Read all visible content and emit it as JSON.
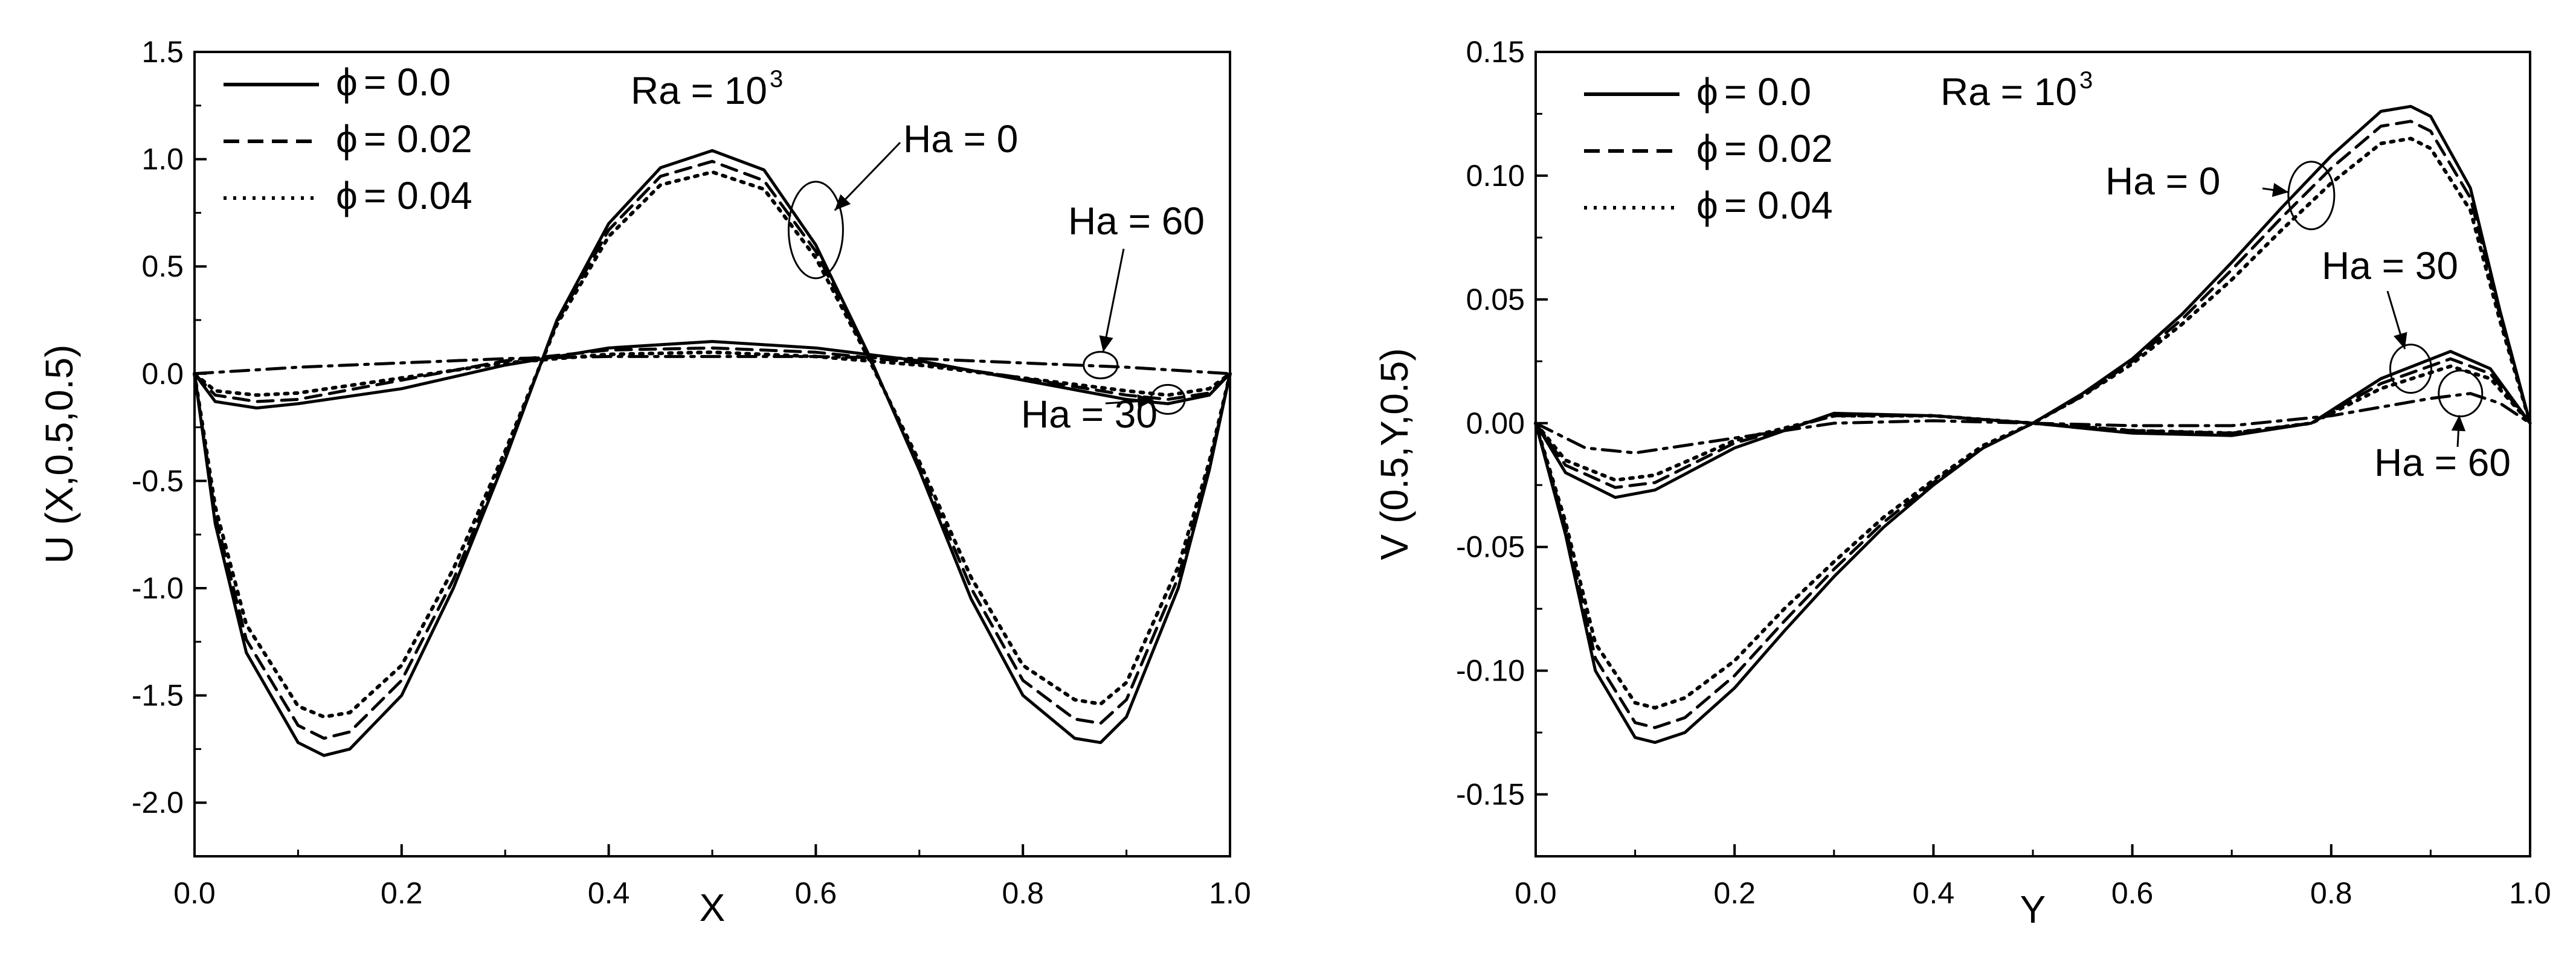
{
  "chart_data": [
    {
      "type": "line",
      "id": "left",
      "xlabel": "X",
      "ylabel": "U (X,0.5,0.5)",
      "xlim": [
        0,
        1
      ],
      "ylim": [
        -2.25,
        1.5
      ],
      "xticks": [
        "0.0",
        "0.2",
        "0.4",
        "0.6",
        "0.8",
        "1.0"
      ],
      "yticks": [
        "1.5",
        "1.0",
        "0.5",
        "0.0",
        "-0.5",
        "-1.0",
        "-1.5",
        "-2.0"
      ],
      "legend": {
        "placement": "top-left",
        "entries": [
          {
            "symbol": "ϕ",
            "text": "= 0.0",
            "style": "solid"
          },
          {
            "symbol": "ϕ",
            "text": "= 0.02",
            "style": "dash"
          },
          {
            "symbol": "ϕ",
            "text": "= 0.04",
            "style": "dot"
          }
        ]
      },
      "ra_label": {
        "base": "Ra = 10",
        "exp": "3"
      },
      "annotations": [
        {
          "text": "Ha = 0",
          "target": [
            0.6,
            0.67
          ]
        },
        {
          "text": "Ha = 60",
          "target": [
            0.875,
            0.04
          ]
        },
        {
          "text": "Ha = 30",
          "target": [
            0.94,
            -0.12
          ]
        }
      ],
      "series": [
        {
          "name": "Ha = 0, ϕ = 0.0",
          "style": "solid",
          "x": [
            0,
            0.02,
            0.05,
            0.1,
            0.125,
            0.15,
            0.2,
            0.25,
            0.3,
            0.35,
            0.4,
            0.45,
            0.5,
            0.55,
            0.6,
            0.65,
            0.7,
            0.75,
            0.8,
            0.85,
            0.875,
            0.9,
            0.95,
            0.98,
            1.0
          ],
          "y": [
            0,
            -0.7,
            -1.3,
            -1.72,
            -1.78,
            -1.75,
            -1.5,
            -1.0,
            -0.4,
            0.25,
            0.7,
            0.96,
            1.04,
            0.95,
            0.6,
            0.1,
            -0.45,
            -1.05,
            -1.5,
            -1.7,
            -1.72,
            -1.6,
            -1.0,
            -0.45,
            0
          ]
        },
        {
          "name": "Ha = 0, ϕ = 0.02",
          "style": "dash",
          "x": [
            0,
            0.02,
            0.05,
            0.1,
            0.125,
            0.15,
            0.2,
            0.25,
            0.3,
            0.35,
            0.4,
            0.45,
            0.5,
            0.55,
            0.6,
            0.65,
            0.7,
            0.75,
            0.8,
            0.85,
            0.875,
            0.9,
            0.95,
            0.98,
            1.0
          ],
          "y": [
            0,
            -0.66,
            -1.24,
            -1.64,
            -1.7,
            -1.67,
            -1.43,
            -0.96,
            -0.38,
            0.24,
            0.67,
            0.92,
            0.99,
            0.9,
            0.57,
            0.09,
            -0.43,
            -1.0,
            -1.43,
            -1.61,
            -1.63,
            -1.52,
            -0.95,
            -0.43,
            0
          ]
        },
        {
          "name": "Ha = 0, ϕ = 0.04",
          "style": "dot",
          "x": [
            0,
            0.02,
            0.05,
            0.1,
            0.125,
            0.15,
            0.2,
            0.25,
            0.3,
            0.35,
            0.4,
            0.45,
            0.5,
            0.55,
            0.6,
            0.65,
            0.7,
            0.75,
            0.8,
            0.85,
            0.875,
            0.9,
            0.95,
            0.98,
            1.0
          ],
          "y": [
            0,
            -0.62,
            -1.17,
            -1.55,
            -1.6,
            -1.58,
            -1.36,
            -0.91,
            -0.36,
            0.23,
            0.64,
            0.88,
            0.94,
            0.86,
            0.54,
            0.08,
            -0.41,
            -0.95,
            -1.36,
            -1.52,
            -1.54,
            -1.44,
            -0.9,
            -0.41,
            0
          ]
        },
        {
          "name": "Ha = 30, ϕ = 0.0",
          "style": "solid",
          "x": [
            0,
            0.02,
            0.06,
            0.1,
            0.2,
            0.3,
            0.4,
            0.5,
            0.6,
            0.7,
            0.8,
            0.9,
            0.94,
            0.98,
            1.0
          ],
          "y": [
            0,
            -0.13,
            -0.16,
            -0.14,
            -0.07,
            0.04,
            0.12,
            0.15,
            0.12,
            0.06,
            -0.03,
            -0.12,
            -0.14,
            -0.1,
            0
          ]
        },
        {
          "name": "Ha = 30, ϕ = 0.02",
          "style": "dash",
          "x": [
            0,
            0.02,
            0.06,
            0.1,
            0.2,
            0.3,
            0.4,
            0.5,
            0.6,
            0.7,
            0.8,
            0.9,
            0.94,
            0.98,
            1.0
          ],
          "y": [
            0,
            -0.1,
            -0.13,
            -0.12,
            -0.03,
            0.06,
            0.11,
            0.12,
            0.1,
            0.05,
            -0.02,
            -0.1,
            -0.12,
            -0.09,
            0
          ]
        },
        {
          "name": "Ha = 30, ϕ = 0.04",
          "style": "dot",
          "x": [
            0,
            0.02,
            0.06,
            0.1,
            0.2,
            0.3,
            0.4,
            0.5,
            0.6,
            0.7,
            0.8,
            0.9,
            0.94,
            0.98,
            1.0
          ],
          "y": [
            0,
            -0.08,
            -0.1,
            -0.09,
            -0.02,
            0.05,
            0.09,
            0.1,
            0.08,
            0.04,
            -0.02,
            -0.08,
            -0.1,
            -0.07,
            0
          ]
        },
        {
          "name": "Ha = 60",
          "style": "dashdot",
          "x": [
            0,
            0.1,
            0.2,
            0.3,
            0.4,
            0.5,
            0.6,
            0.7,
            0.8,
            0.9,
            1.0
          ],
          "y": [
            0,
            0.03,
            0.05,
            0.07,
            0.08,
            0.08,
            0.08,
            0.07,
            0.05,
            0.03,
            0
          ]
        }
      ]
    },
    {
      "type": "line",
      "id": "right",
      "xlabel": "Y",
      "ylabel": "V (0.5,Y,0.5)",
      "xlim": [
        0,
        1
      ],
      "ylim": [
        -0.175,
        0.15
      ],
      "xticks": [
        "0.0",
        "0.2",
        "0.4",
        "0.6",
        "0.8",
        "1.0"
      ],
      "yticks": [
        "0.15",
        "0.10",
        "0.05",
        "0.00",
        "-0.05",
        "-0.10",
        "-0.15"
      ],
      "legend": {
        "placement": "top-left",
        "entries": [
          {
            "symbol": "ϕ",
            "text": "= 0.0",
            "style": "solid"
          },
          {
            "symbol": "ϕ",
            "text": "= 0.02",
            "style": "dash"
          },
          {
            "symbol": "ϕ",
            "text": "= 0.04",
            "style": "dot"
          }
        ]
      },
      "ra_label": {
        "base": "Ra = 10",
        "exp": "3"
      },
      "annotations": [
        {
          "text": "Ha = 0",
          "target": [
            0.78,
            0.092
          ]
        },
        {
          "text": "Ha = 30",
          "target": [
            0.88,
            0.022
          ]
        },
        {
          "text": "Ha = 60",
          "target": [
            0.93,
            0.012
          ]
        }
      ],
      "series": [
        {
          "name": "Ha = 0, ϕ = 0.0",
          "style": "solid",
          "x": [
            0,
            0.03,
            0.06,
            0.1,
            0.12,
            0.15,
            0.2,
            0.25,
            0.3,
            0.35,
            0.4,
            0.45,
            0.5,
            0.55,
            0.6,
            0.65,
            0.7,
            0.75,
            0.8,
            0.85,
            0.88,
            0.9,
            0.94,
            0.97,
            1.0
          ],
          "y": [
            0,
            -0.045,
            -0.1,
            -0.127,
            -0.129,
            -0.125,
            -0.107,
            -0.084,
            -0.062,
            -0.042,
            -0.025,
            -0.01,
            0,
            0.012,
            0.026,
            0.044,
            0.065,
            0.087,
            0.108,
            0.126,
            0.128,
            0.124,
            0.095,
            0.045,
            0
          ]
        },
        {
          "name": "Ha = 0, ϕ = 0.02",
          "style": "dash",
          "x": [
            0,
            0.03,
            0.06,
            0.1,
            0.12,
            0.15,
            0.2,
            0.25,
            0.3,
            0.35,
            0.4,
            0.45,
            0.5,
            0.55,
            0.6,
            0.65,
            0.7,
            0.75,
            0.8,
            0.85,
            0.88,
            0.9,
            0.94,
            0.97,
            1.0
          ],
          "y": [
            0,
            -0.042,
            -0.095,
            -0.121,
            -0.123,
            -0.119,
            -0.102,
            -0.08,
            -0.059,
            -0.04,
            -0.024,
            -0.01,
            0,
            0.011,
            0.025,
            0.042,
            0.062,
            0.083,
            0.103,
            0.12,
            0.122,
            0.118,
            0.091,
            0.043,
            0
          ]
        },
        {
          "name": "Ha = 0, ϕ = 0.04",
          "style": "dot",
          "x": [
            0,
            0.03,
            0.06,
            0.1,
            0.12,
            0.15,
            0.2,
            0.25,
            0.3,
            0.35,
            0.4,
            0.45,
            0.5,
            0.55,
            0.6,
            0.65,
            0.7,
            0.75,
            0.8,
            0.85,
            0.88,
            0.9,
            0.94,
            0.97,
            1.0
          ],
          "y": [
            0,
            -0.04,
            -0.089,
            -0.113,
            -0.115,
            -0.111,
            -0.096,
            -0.075,
            -0.056,
            -0.038,
            -0.023,
            -0.009,
            0,
            0.011,
            0.024,
            0.04,
            0.058,
            0.078,
            0.097,
            0.113,
            0.115,
            0.111,
            0.086,
            0.041,
            0
          ]
        },
        {
          "name": "Ha = 30, ϕ = 0.0",
          "style": "solid",
          "x": [
            0,
            0.03,
            0.08,
            0.12,
            0.2,
            0.3,
            0.4,
            0.5,
            0.6,
            0.7,
            0.78,
            0.85,
            0.92,
            0.96,
            1.0
          ],
          "y": [
            0,
            -0.02,
            -0.03,
            -0.027,
            -0.01,
            0.004,
            0.003,
            0,
            -0.004,
            -0.005,
            0,
            0.018,
            0.029,
            0.022,
            0
          ]
        },
        {
          "name": "Ha = 30, ϕ = 0.02",
          "style": "dash",
          "x": [
            0,
            0.03,
            0.08,
            0.12,
            0.2,
            0.3,
            0.4,
            0.5,
            0.6,
            0.7,
            0.78,
            0.85,
            0.92,
            0.96,
            1.0
          ],
          "y": [
            0,
            -0.017,
            -0.026,
            -0.024,
            -0.008,
            0.003,
            0.003,
            0,
            -0.003,
            -0.004,
            0,
            0.016,
            0.026,
            0.02,
            0
          ]
        },
        {
          "name": "Ha = 30, ϕ = 0.04",
          "style": "dot",
          "x": [
            0,
            0.03,
            0.08,
            0.12,
            0.2,
            0.3,
            0.4,
            0.5,
            0.6,
            0.7,
            0.78,
            0.85,
            0.92,
            0.96,
            1.0
          ],
          "y": [
            0,
            -0.015,
            -0.023,
            -0.021,
            -0.007,
            0.003,
            0.003,
            0,
            -0.003,
            -0.004,
            0,
            0.014,
            0.023,
            0.018,
            0
          ]
        },
        {
          "name": "Ha = 60",
          "style": "dashdot",
          "x": [
            0,
            0.05,
            0.1,
            0.2,
            0.3,
            0.4,
            0.5,
            0.6,
            0.7,
            0.8,
            0.9,
            0.94,
            0.97,
            1.0
          ],
          "y": [
            0,
            -0.01,
            -0.012,
            -0.006,
            0,
            0.001,
            0,
            -0.001,
            -0.001,
            0.003,
            0.01,
            0.012,
            0.008,
            0
          ]
        }
      ]
    }
  ]
}
